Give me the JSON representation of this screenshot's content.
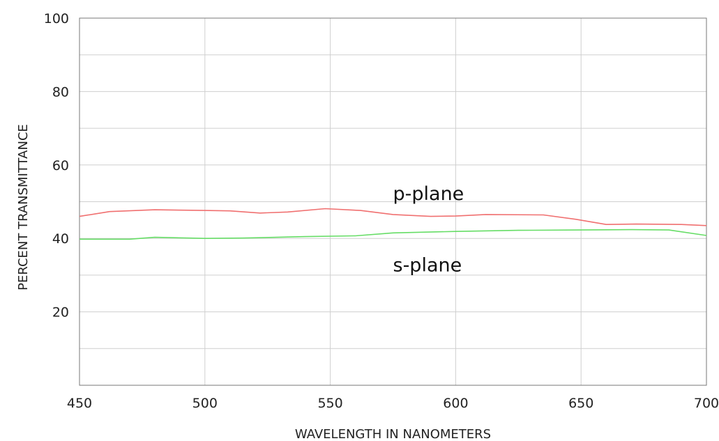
{
  "chart_data": {
    "type": "line",
    "xlabel": "WAVELENGTH IN NANOMETERS",
    "ylabel": "PERCENT TRANSMITTANCE",
    "xlim": [
      450,
      700
    ],
    "ylim": [
      0,
      100
    ],
    "x_ticks": [
      450,
      500,
      550,
      600,
      650,
      700
    ],
    "y_ticks": [
      20,
      40,
      60,
      80,
      100
    ],
    "x_minor_step": 25,
    "y_minor_step": 10,
    "grid": true,
    "series": [
      {
        "name": "p-plane",
        "color": "#f07070",
        "x": [
          450,
          462,
          480,
          500,
          510,
          522,
          533,
          548,
          562,
          575,
          590,
          600,
          612,
          635,
          648,
          660,
          672,
          690,
          700
        ],
        "y": [
          46,
          47.3,
          47.8,
          47.6,
          47.5,
          46.9,
          47.2,
          48.1,
          47.6,
          46.5,
          46,
          46.1,
          46.5,
          46.4,
          45.2,
          43.8,
          43.9,
          43.8,
          43.5
        ]
      },
      {
        "name": "s-plane",
        "color": "#66dd66",
        "x": [
          450,
          470,
          480,
          500,
          515,
          540,
          560,
          575,
          600,
          625,
          650,
          670,
          685,
          700
        ],
        "y": [
          39.8,
          39.8,
          40.3,
          40,
          40.1,
          40.5,
          40.7,
          41.5,
          41.9,
          42.2,
          42.3,
          42.4,
          42.3,
          40.8
        ]
      }
    ],
    "annotations": [
      {
        "text": "p-plane",
        "x": 575,
        "y": 50.5,
        "series": 0
      },
      {
        "text": "s-plane",
        "x": 575,
        "y": 31,
        "series": 1
      }
    ]
  }
}
